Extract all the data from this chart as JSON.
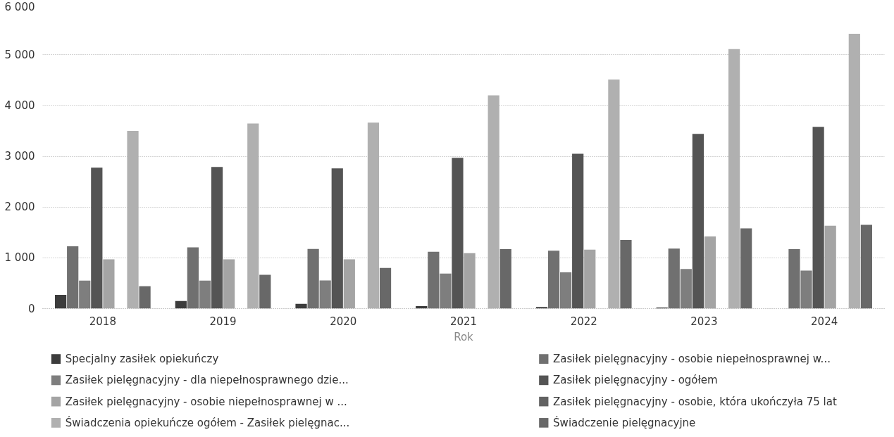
{
  "chart_data": {
    "type": "bar",
    "xlabel": "Rok",
    "categories": [
      "2018",
      "2019",
      "2020",
      "2021",
      "2022",
      "2023",
      "2024"
    ],
    "ylim": [
      0,
      6000
    ],
    "yticks": [
      {
        "value": 0,
        "label": "0"
      },
      {
        "value": 1000,
        "label": "1 000"
      },
      {
        "value": 2000,
        "label": "2 000"
      },
      {
        "value": 3000,
        "label": "3 000"
      },
      {
        "value": 4000,
        "label": "4 000"
      },
      {
        "value": 5000,
        "label": "5 000"
      },
      {
        "value": 6000,
        "label": "6 000"
      }
    ],
    "grid": "y",
    "legend": "bottom",
    "series": [
      {
        "name": "Specjalny zasiłek opiekuńczy",
        "color": "#3c3c3c",
        "values": [
          270,
          150,
          95,
          50,
          30,
          20,
          null
        ]
      },
      {
        "name": "Zasiłek pielęgnacyjny -  osobie niepełnosprawnej w...",
        "color": "#707070",
        "values": [
          1225,
          1205,
          1175,
          1120,
          1140,
          1180,
          1170
        ]
      },
      {
        "name": "Zasiłek pielęgnacyjny - dla niepełnosprawnego dzie...",
        "color": "#7e7e7e",
        "values": [
          550,
          550,
          555,
          690,
          715,
          780,
          750
        ]
      },
      {
        "name": "Zasiłek pielęgnacyjny - ogółem",
        "color": "#545454",
        "values": [
          2775,
          2790,
          2760,
          2970,
          3050,
          3440,
          3580
        ]
      },
      {
        "name": "Zasiłek pielęgnacyjny - osobie niepełnosprawnej w ...",
        "color": "#a4a4a4",
        "values": [
          970,
          970,
          970,
          1090,
          1160,
          1420,
          1630
        ]
      },
      {
        "name": "Zasiłek pielęgnacyjny - osobie, która ukończyła 75 lat",
        "color": "#626262",
        "values": [
          null,
          null,
          null,
          null,
          null,
          null,
          null
        ]
      },
      {
        "name": "Świadczenia opiekuńcze ogółem - Zasiłek pielęgnac...",
        "color": "#b0b0b0",
        "values": [
          3500,
          3645,
          3660,
          4200,
          4510,
          5110,
          5410
        ]
      },
      {
        "name": "Świadczenie pielęgnacyjne",
        "color": "#686868",
        "values": [
          440,
          665,
          800,
          1170,
          1350,
          1580,
          1650
        ]
      }
    ]
  }
}
